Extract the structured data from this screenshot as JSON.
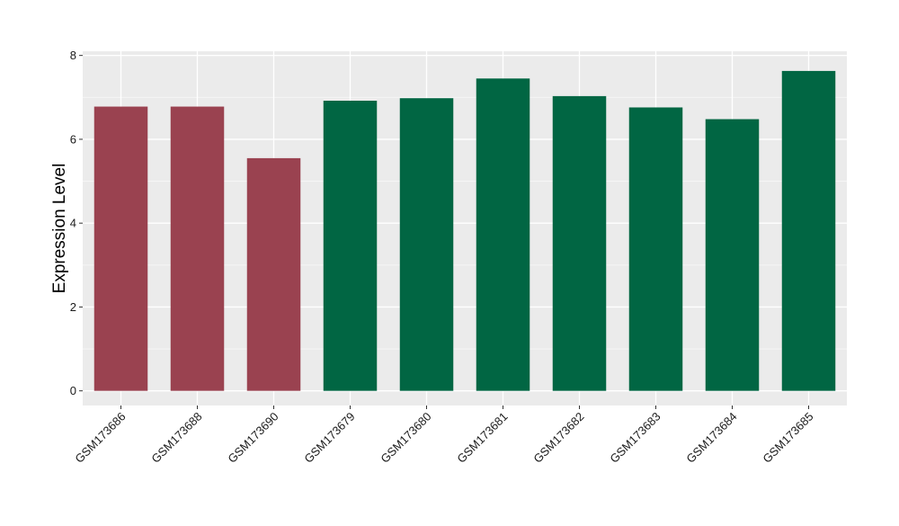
{
  "chart_data": {
    "type": "bar",
    "title": "",
    "xlabel": "",
    "ylabel": "Expression Level",
    "ylim": [
      -0.35,
      8.1
    ],
    "yticks": [
      0,
      2,
      4,
      6,
      8
    ],
    "grid": true,
    "background": "#EBEBEB",
    "categories": [
      "GSM173686",
      "GSM173688",
      "GSM173690",
      "GSM173679",
      "GSM173680",
      "GSM173681",
      "GSM173682",
      "GSM173683",
      "GSM173684",
      "GSM173685"
    ],
    "values": [
      6.78,
      6.78,
      5.55,
      6.92,
      6.98,
      7.45,
      7.03,
      6.76,
      6.48,
      7.63
    ],
    "bar_colors": [
      "#9A4250",
      "#9A4250",
      "#9A4250",
      "#016643",
      "#016643",
      "#016643",
      "#016643",
      "#016643",
      "#016643",
      "#016643"
    ]
  }
}
